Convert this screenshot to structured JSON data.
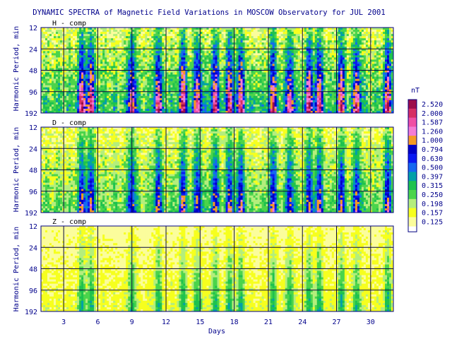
{
  "figure": {
    "title": "DYNAMIC SPECTRA of Magnetic Field Variations in MOSCOW Observatory for JUL 2001"
  },
  "chart_data": {
    "type": "heatmap",
    "title": "DYNAMIC SPECTRA of Magnetic Field Variations in MOSCOW Observatory for JUL 2001",
    "xlabel": "Days",
    "ylabel": "Harmonic Period, min",
    "xlim": [
      1,
      32
    ],
    "x_ticks": [
      3,
      6,
      9,
      12,
      15,
      18,
      21,
      24,
      27,
      30
    ],
    "y_ticks": [
      12,
      24,
      48,
      96,
      192
    ],
    "y_scale": "log2",
    "ylim": [
      12,
      192
    ],
    "grid": true,
    "panels": [
      {
        "label": "H - comp"
      },
      {
        "label": "D - comp"
      },
      {
        "label": "Z - comp"
      }
    ],
    "colorbar": {
      "unit": "nT",
      "levels": [
        "2.520",
        "2.000",
        "1.587",
        "1.260",
        "1.000",
        "0.794",
        "0.630",
        "0.500",
        "0.397",
        "0.315",
        "0.250",
        "0.198",
        "0.157",
        "0.125"
      ],
      "colors": [
        "#9c0c4a",
        "#d62e64",
        "#ef4fa4",
        "#f47cd4",
        "#f59a22",
        "#0000c6",
        "#0a19f2",
        "#1568f0",
        "#00a0a8",
        "#1ec24e",
        "#4bd44b",
        "#b4ee7c",
        "#f6ff1e",
        "#fbfd9c"
      ]
    }
  }
}
